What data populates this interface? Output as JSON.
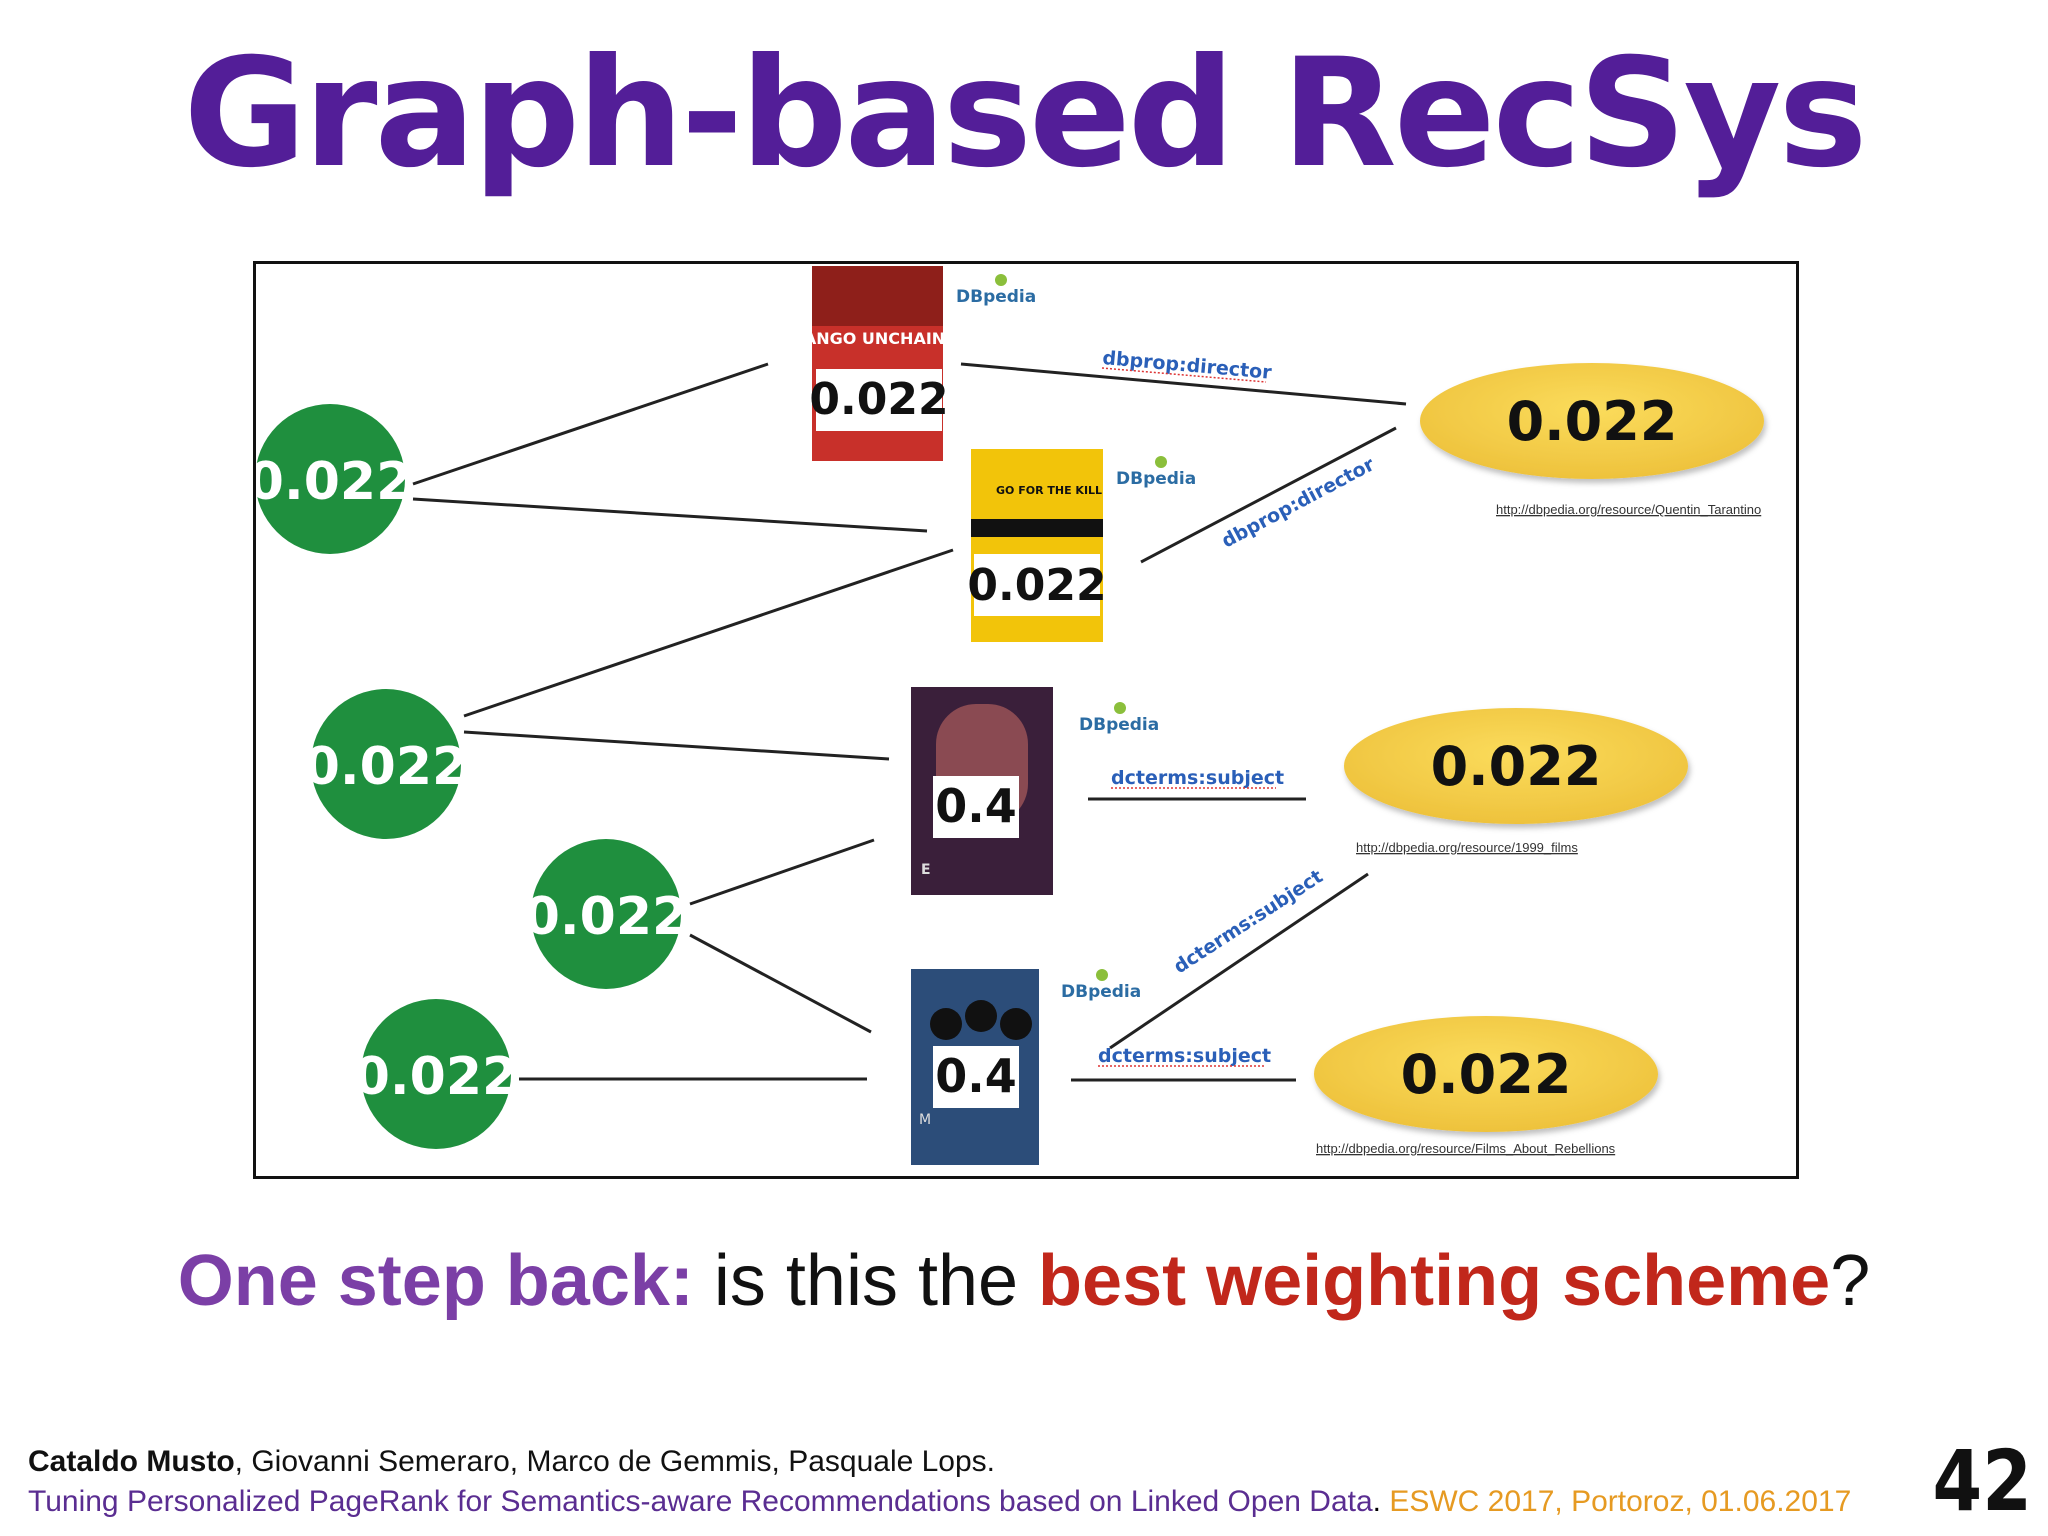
{
  "slide": {
    "title": "Graph-based RecSys",
    "question": {
      "lead": "One step back:",
      "middle": " is this the ",
      "highlight": "best weighting scheme",
      "end": "?"
    },
    "footer": {
      "lead_author": "Cataldo Musto",
      "other_authors": ", Giovanni Semeraro, Marco de Gemmis, Pasquale Lops.",
      "paper_title": "Tuning Personalized PageRank for Semantics-aware Recommendations based on Linked Open Data",
      "paper_sep": ". ",
      "venue": "ESWC 2017, Portoroz, 01.06.2017"
    },
    "page_number": "42"
  },
  "diagram": {
    "user_nodes": [
      "0.022",
      "0.022",
      "0.022",
      "0.022"
    ],
    "items": [
      {
        "poster": "django-poster",
        "poster_text": "DJANGO UNCHAINED",
        "score": "0.022",
        "source": "DBpedia"
      },
      {
        "poster": "kill-bill-poster",
        "poster_text": "GO FOR THE KILL",
        "score": "0.022",
        "source": "DBpedia"
      },
      {
        "poster": "eyes-wide-shut-poster",
        "poster_text": "E",
        "score": "0.4",
        "source": "DBpedia"
      },
      {
        "poster": "matrix-poster",
        "poster_text": "M",
        "score": "0.4",
        "source": "DBpedia"
      }
    ],
    "entities": [
      {
        "score": "0.022",
        "uri": "http://dbpedia.org/resource/Quentin_Tarantino"
      },
      {
        "score": "0.022",
        "uri": "http://dbpedia.org/resource/1999_films"
      },
      {
        "score": "0.022",
        "uri": "http://dbpedia.org/resource/Films_About_Rebellions"
      }
    ],
    "edge_labels": [
      "dbprop:director",
      "dbprop:director",
      "dcterms:subject",
      "dcterms:subject",
      "dcterms:subject"
    ],
    "colors": {
      "user_node": "#1f8f3e",
      "entity_node": "#f2cd4b",
      "edge_label": "#2a5fb8",
      "title": "#531e98"
    }
  }
}
